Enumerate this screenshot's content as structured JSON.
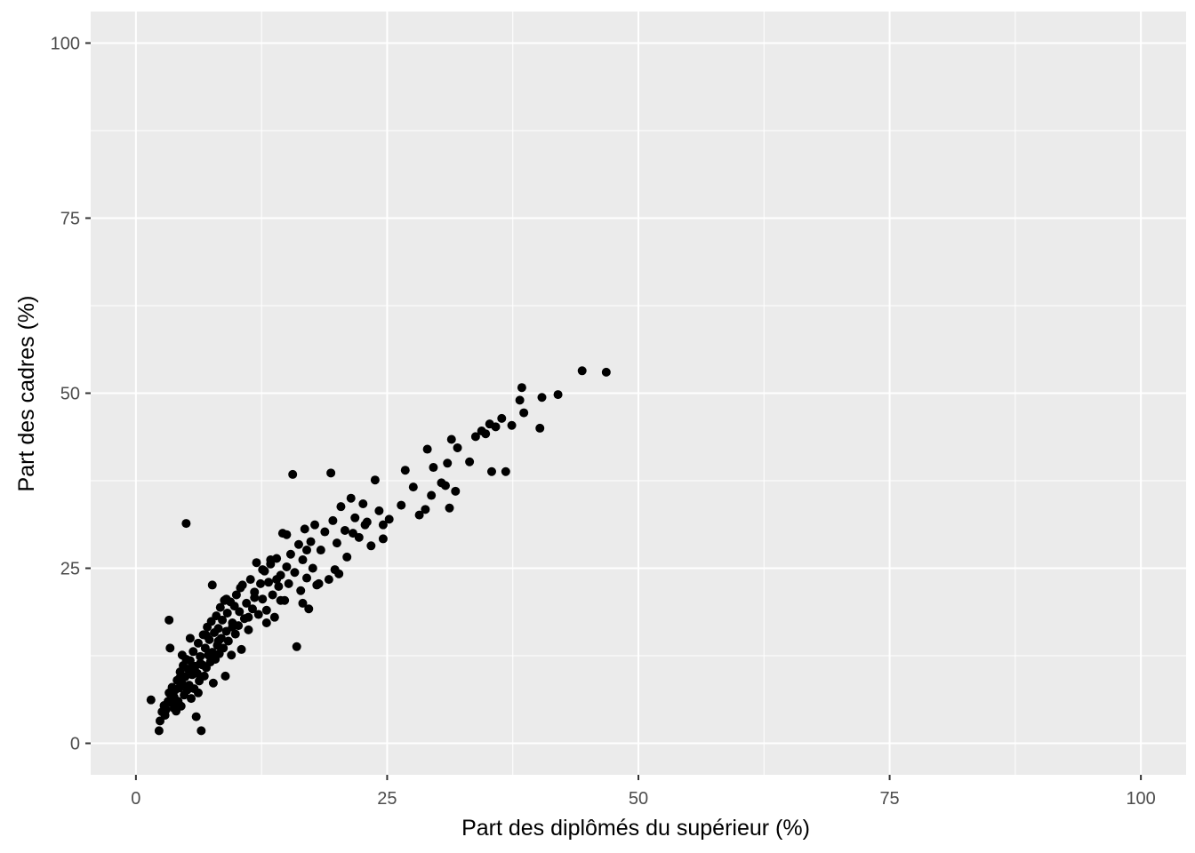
{
  "chart_data": {
    "type": "scatter",
    "title": "",
    "xlabel": "Part des diplômés du supérieur (%)",
    "ylabel": "Part des cadres (%)",
    "xlim": [
      -4.5,
      104.5
    ],
    "ylim": [
      -4.5,
      104.5
    ],
    "x_ticks": [
      0,
      25,
      50,
      75,
      100
    ],
    "x_tick_labels": [
      "0",
      "25",
      "50",
      "75",
      "100"
    ],
    "y_ticks": [
      0,
      25,
      50,
      75,
      100
    ],
    "y_tick_labels": [
      "0",
      "25",
      "50",
      "75",
      "100"
    ],
    "grid": true,
    "legend": "none",
    "colors": {
      "panel": "#ebebeb",
      "grid": "#ffffff",
      "point": "#000000",
      "tick_text": "#4d4d4d",
      "tick_mark": "#333333"
    },
    "points": [
      [
        1.5,
        6.2
      ],
      [
        2.3,
        1.8
      ],
      [
        2.4,
        3.2
      ],
      [
        2.6,
        4.5
      ],
      [
        2.8,
        5.4
      ],
      [
        3.0,
        4.8
      ],
      [
        3.2,
        6.0
      ],
      [
        3.3,
        7.2
      ],
      [
        3.5,
        5.8
      ],
      [
        3.6,
        8.0
      ],
      [
        3.8,
        6.6
      ],
      [
        3.9,
        7.6
      ],
      [
        4.0,
        4.6
      ],
      [
        4.1,
        9.0
      ],
      [
        4.2,
        6.0
      ],
      [
        4.3,
        7.9
      ],
      [
        4.4,
        10.2
      ],
      [
        4.5,
        5.3
      ],
      [
        4.6,
        8.5
      ],
      [
        4.7,
        11.1
      ],
      [
        4.8,
        6.9
      ],
      [
        4.9,
        9.5
      ],
      [
        5.0,
        12.0
      ],
      [
        5.1,
        7.6
      ],
      [
        5.2,
        10.6
      ],
      [
        5.3,
        8.3
      ],
      [
        5.4,
        11.8
      ],
      [
        5.5,
        6.4
      ],
      [
        5.6,
        9.8
      ],
      [
        5.7,
        13.1
      ],
      [
        5.8,
        7.8
      ],
      [
        5.9,
        11.0
      ],
      [
        6.0,
        3.8
      ],
      [
        6.1,
        10.0
      ],
      [
        6.2,
        14.3
      ],
      [
        6.3,
        8.9
      ],
      [
        6.4,
        12.4
      ],
      [
        6.5,
        1.8
      ],
      [
        6.6,
        11.2
      ],
      [
        6.7,
        15.5
      ],
      [
        6.8,
        9.6
      ],
      [
        6.9,
        13.6
      ],
      [
        7.0,
        10.8
      ],
      [
        7.1,
        16.6
      ],
      [
        7.2,
        12.6
      ],
      [
        7.3,
        14.8
      ],
      [
        7.4,
        11.6
      ],
      [
        7.5,
        17.4
      ],
      [
        7.6,
        13.0
      ],
      [
        7.7,
        8.6
      ],
      [
        7.8,
        15.8
      ],
      [
        7.9,
        12.0
      ],
      [
        8.0,
        18.2
      ],
      [
        8.1,
        14.0
      ],
      [
        8.2,
        16.4
      ],
      [
        8.3,
        12.8
      ],
      [
        8.4,
        19.4
      ],
      [
        8.5,
        15.0
      ],
      [
        8.6,
        17.6
      ],
      [
        8.7,
        13.6
      ],
      [
        8.8,
        20.4
      ],
      [
        8.9,
        9.6
      ],
      [
        9.0,
        16.0
      ],
      [
        9.1,
        18.6
      ],
      [
        9.2,
        14.6
      ],
      [
        9.4,
        20.2
      ],
      [
        9.5,
        12.6
      ],
      [
        9.6,
        17.2
      ],
      [
        9.8,
        19.6
      ],
      [
        9.9,
        15.6
      ],
      [
        10.0,
        21.2
      ],
      [
        10.2,
        16.8
      ],
      [
        10.3,
        18.8
      ],
      [
        10.5,
        13.4
      ],
      [
        10.6,
        22.6
      ],
      [
        10.8,
        17.8
      ],
      [
        11.0,
        20.0
      ],
      [
        11.2,
        16.2
      ],
      [
        11.4,
        23.4
      ],
      [
        11.6,
        19.2
      ],
      [
        11.8,
        21.6
      ],
      [
        12.0,
        25.8
      ],
      [
        12.2,
        18.4
      ],
      [
        12.4,
        22.8
      ],
      [
        12.6,
        20.6
      ],
      [
        12.8,
        24.6
      ],
      [
        13.0,
        19.0
      ],
      [
        13.2,
        23.0
      ],
      [
        13.4,
        25.6
      ],
      [
        13.6,
        21.2
      ],
      [
        13.8,
        18.0
      ],
      [
        14.0,
        26.4
      ],
      [
        14.2,
        22.4
      ],
      [
        14.4,
        24.0
      ],
      [
        14.6,
        30.0
      ],
      [
        14.8,
        20.4
      ],
      [
        15.0,
        25.2
      ],
      [
        15.2,
        22.8
      ],
      [
        15.4,
        27.0
      ],
      [
        15.6,
        38.4
      ],
      [
        15.8,
        24.4
      ],
      [
        16.0,
        13.8
      ],
      [
        16.2,
        28.4
      ],
      [
        16.4,
        21.8
      ],
      [
        16.6,
        26.2
      ],
      [
        16.8,
        30.6
      ],
      [
        17.0,
        23.6
      ],
      [
        17.2,
        19.2
      ],
      [
        17.4,
        28.8
      ],
      [
        17.6,
        25.0
      ],
      [
        17.8,
        31.2
      ],
      [
        18.0,
        22.6
      ],
      [
        18.4,
        27.6
      ],
      [
        18.8,
        30.2
      ],
      [
        19.2,
        23.4
      ],
      [
        19.4,
        38.6
      ],
      [
        19.6,
        31.8
      ],
      [
        20.0,
        28.6
      ],
      [
        20.2,
        24.2
      ],
      [
        20.4,
        33.8
      ],
      [
        20.8,
        30.4
      ],
      [
        21.0,
        26.6
      ],
      [
        21.4,
        35.0
      ],
      [
        21.8,
        32.2
      ],
      [
        22.2,
        29.4
      ],
      [
        22.6,
        34.2
      ],
      [
        23.0,
        31.6
      ],
      [
        23.4,
        28.2
      ],
      [
        23.8,
        37.6
      ],
      [
        24.2,
        33.2
      ],
      [
        24.6,
        29.2
      ],
      [
        25.2,
        32.0
      ],
      [
        26.4,
        34.0
      ],
      [
        26.8,
        39.0
      ],
      [
        27.6,
        36.6
      ],
      [
        28.2,
        32.6
      ],
      [
        28.8,
        33.4
      ],
      [
        29.0,
        42.0
      ],
      [
        29.4,
        35.4
      ],
      [
        29.6,
        39.4
      ],
      [
        30.4,
        37.2
      ],
      [
        30.8,
        36.8
      ],
      [
        31.0,
        40.0
      ],
      [
        31.2,
        33.6
      ],
      [
        31.4,
        43.4
      ],
      [
        31.8,
        36.0
      ],
      [
        32.0,
        42.2
      ],
      [
        33.2,
        40.2
      ],
      [
        33.8,
        43.8
      ],
      [
        34.4,
        44.6
      ],
      [
        34.8,
        44.2
      ],
      [
        35.2,
        45.6
      ],
      [
        35.4,
        38.8
      ],
      [
        35.8,
        45.2
      ],
      [
        36.4,
        46.4
      ],
      [
        36.8,
        38.8
      ],
      [
        37.4,
        45.4
      ],
      [
        38.2,
        49.0
      ],
      [
        38.4,
        50.8
      ],
      [
        38.6,
        47.2
      ],
      [
        40.2,
        45.0
      ],
      [
        40.4,
        49.4
      ],
      [
        42.0,
        49.8
      ],
      [
        44.4,
        53.2
      ],
      [
        46.8,
        53.0
      ],
      [
        5.0,
        31.4
      ],
      [
        3.3,
        17.6
      ],
      [
        7.6,
        22.6
      ],
      [
        3.4,
        13.6
      ],
      [
        4.6,
        12.6
      ],
      [
        5.4,
        15.0
      ],
      [
        6.2,
        7.2
      ],
      [
        9.0,
        20.6
      ],
      [
        10.4,
        22.2
      ],
      [
        11.2,
        18.0
      ],
      [
        13.0,
        17.2
      ],
      [
        12.6,
        24.8
      ],
      [
        14.4,
        20.4
      ],
      [
        15.0,
        29.8
      ],
      [
        16.6,
        20.0
      ],
      [
        18.2,
        22.8
      ],
      [
        19.8,
        24.8
      ],
      [
        21.6,
        30.0
      ],
      [
        22.8,
        31.2
      ],
      [
        24.6,
        31.2
      ],
      [
        14.0,
        23.4
      ],
      [
        8.2,
        14.6
      ],
      [
        6.4,
        11.4
      ],
      [
        5.6,
        10.8
      ],
      [
        4.4,
        9.4
      ],
      [
        3.8,
        5.0
      ],
      [
        2.9,
        4.0
      ],
      [
        7.0,
        15.4
      ],
      [
        9.6,
        16.6
      ],
      [
        11.8,
        20.8
      ],
      [
        13.4,
        26.2
      ],
      [
        17.0,
        27.6
      ]
    ]
  }
}
